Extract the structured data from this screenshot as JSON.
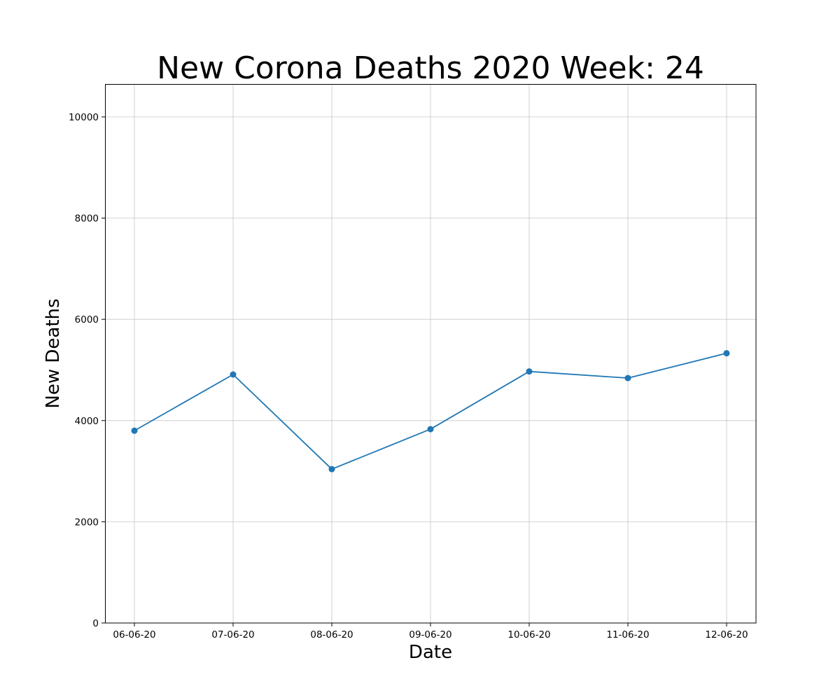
{
  "chart_data": {
    "type": "line",
    "title": "New Corona Deaths 2020 Week: 24",
    "xlabel": "Date",
    "ylabel": "New Deaths",
    "categories": [
      "06-06-20",
      "07-06-20",
      "08-06-20",
      "09-06-20",
      "10-06-20",
      "11-06-20",
      "12-06-20"
    ],
    "series": [
      {
        "values": [
          3800,
          4910,
          3040,
          3830,
          4970,
          4840,
          5330
        ],
        "color": "#1f77b4",
        "marker": "circle"
      }
    ],
    "ylim": [
      0,
      10650
    ],
    "yticks": [
      0,
      2000,
      4000,
      6000,
      8000,
      10000
    ],
    "grid": true,
    "legend": "none"
  }
}
